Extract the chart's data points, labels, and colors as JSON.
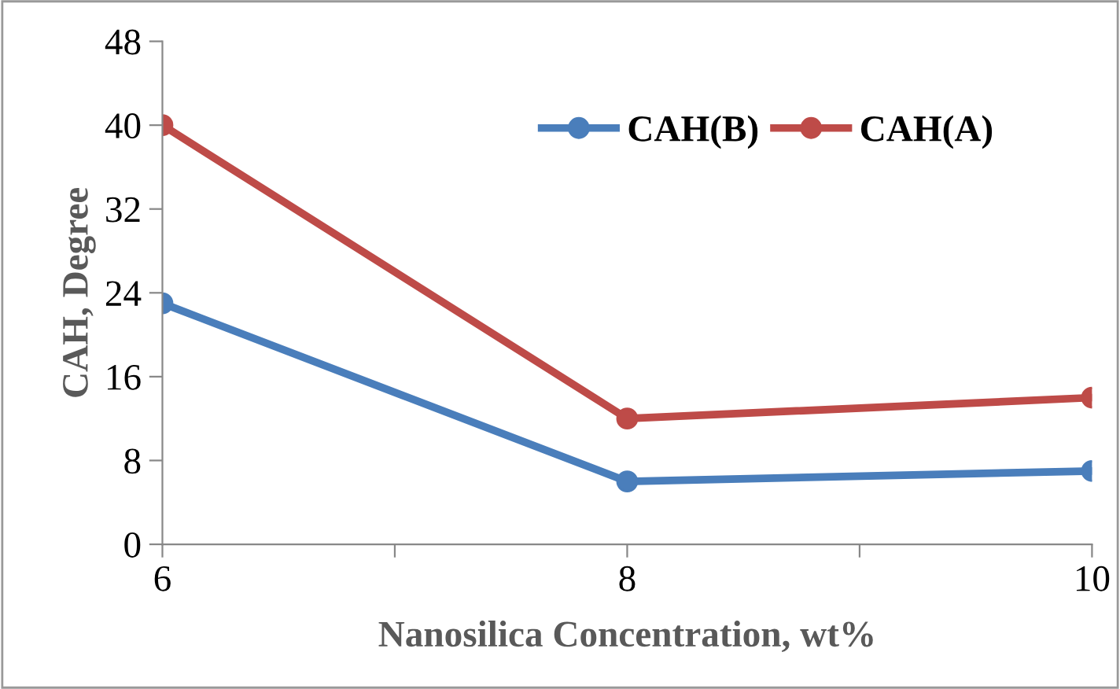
{
  "chart_data": {
    "type": "line",
    "xlabel": "Nanosilica Concentration, wt%",
    "ylabel": "CAH, Degree",
    "x": [
      6,
      8,
      10
    ],
    "series": [
      {
        "name": "CAH(B)",
        "color": "#4a7ebb",
        "values": [
          23,
          6,
          7
        ]
      },
      {
        "name": "CAH(A)",
        "color": "#be4b48",
        "values": [
          40,
          12,
          14
        ]
      }
    ],
    "xlim": [
      6,
      10
    ],
    "xticks": [
      6,
      {
        "value": 7,
        "label": null
      },
      8,
      {
        "value": 9,
        "label": null
      },
      10
    ],
    "ylim": [
      0,
      48
    ],
    "yticks": [
      0,
      8,
      16,
      24,
      32,
      40,
      48
    ],
    "marker": "circle",
    "line_style": "solid",
    "legend": "top right",
    "grid": false
  }
}
